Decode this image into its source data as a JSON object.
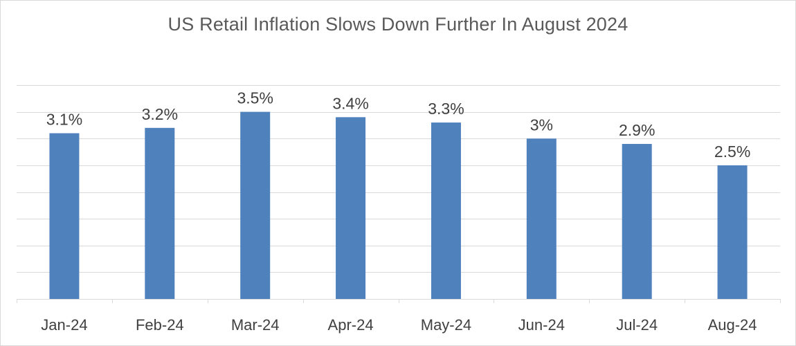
{
  "chart_data": {
    "type": "bar",
    "title": "US Retail Inflation Slows Down Further In August 2024",
    "categories": [
      "Jan-24",
      "Feb-24",
      "Mar-24",
      "Apr-24",
      "May-24",
      "Jun-24",
      "Jul-24",
      "Aug-24"
    ],
    "values": [
      3.1,
      3.2,
      3.5,
      3.4,
      3.3,
      3.0,
      2.9,
      2.5
    ],
    "data_labels": [
      "3.1%",
      "3.2%",
      "3.5%",
      "3.4%",
      "3.3%",
      "3%",
      "2.9%",
      "2.5%"
    ],
    "xlabel": "",
    "ylabel": "",
    "ylim": [
      0,
      4.0
    ],
    "y_grid_step": 0.5,
    "grid": true,
    "y_tick_labels_visible": false,
    "legend": "none",
    "bar_color": "#4f81bd"
  }
}
